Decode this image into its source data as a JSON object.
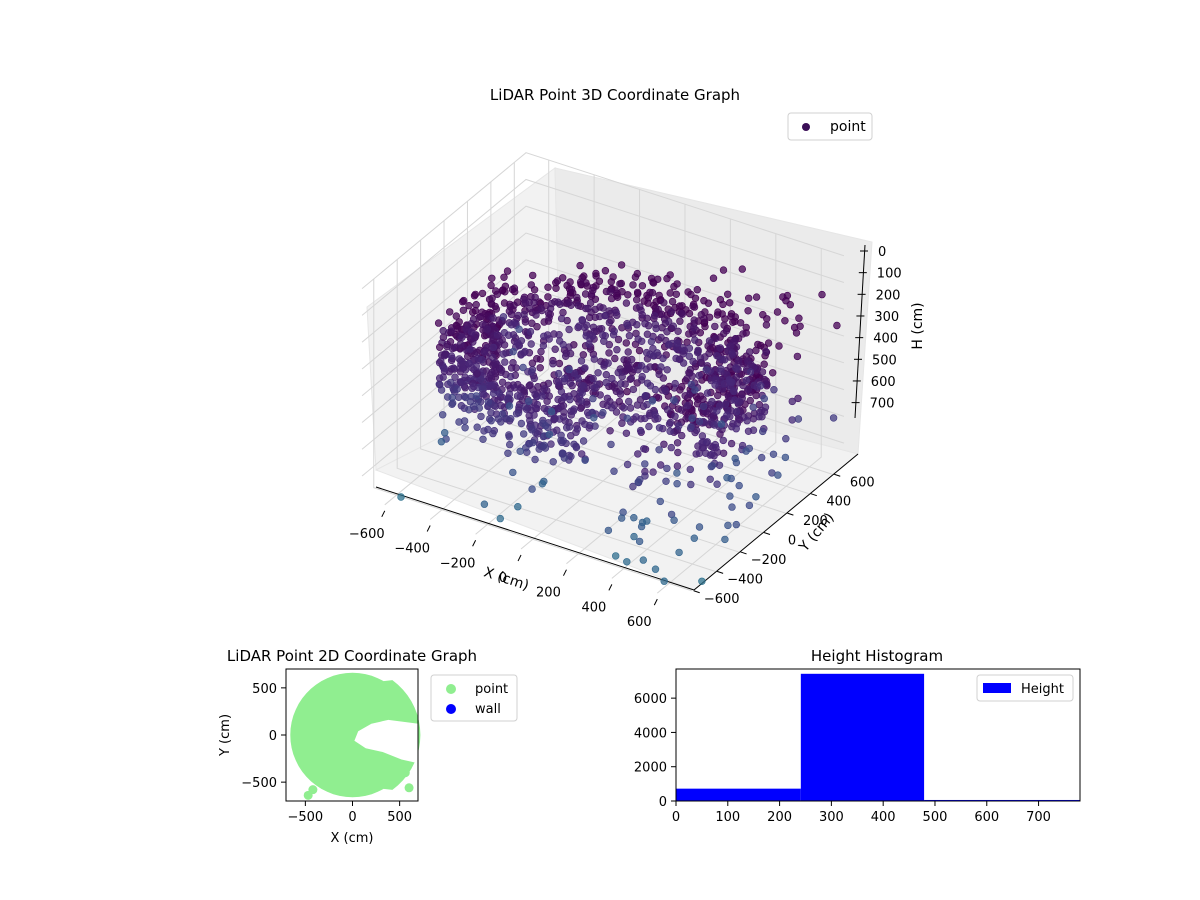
{
  "chart_data": [
    {
      "type": "scatter3d",
      "title": "LiDAR Point 3D Coordinate Graph",
      "xlabel": "X (cm)",
      "ylabel": "Y (cm)",
      "zlabel": "H (cm)",
      "xlim": [
        -700,
        700
      ],
      "ylim": [
        -700,
        700
      ],
      "zlim": [
        780,
        0
      ],
      "xticks": [
        -600,
        -400,
        -200,
        0,
        200,
        400,
        600
      ],
      "yticks": [
        -600,
        -400,
        -200,
        0,
        200,
        400,
        600
      ],
      "zticks": [
        0,
        100,
        200,
        300,
        400,
        500,
        600,
        700
      ],
      "grid": true,
      "legend": {
        "location": "upper-right",
        "entries": [
          {
            "name": "point",
            "color": "#3b0f57"
          }
        ]
      },
      "colormap": "viridis",
      "series": [
        {
          "name": "point",
          "description_points": "dense ring-shaped cloud of LiDAR returns around the origin, radius 400–650 cm, heights 250–480 cm, with sparse outliers"
        }
      ]
    },
    {
      "type": "scatter",
      "title": "LiDAR Point 2D Coordinate Graph",
      "xlabel": "X (cm)",
      "ylabel": "Y (cm)",
      "xlim": [
        -700,
        700
      ],
      "ylim": [
        -700,
        700
      ],
      "xticks": [
        -500,
        0,
        500
      ],
      "yticks": [
        -500,
        0,
        500
      ],
      "legend": {
        "location": "outside-right",
        "entries": [
          {
            "name": "point",
            "color": "#90ee90"
          },
          {
            "name": "wall",
            "color": "#0000ff"
          }
        ]
      }
    },
    {
      "type": "bar",
      "title": "Height Histogram",
      "xlabel": "",
      "ylabel": "",
      "bins": [
        {
          "x0": 0,
          "x1": 241,
          "count": 720
        },
        {
          "x0": 241,
          "x1": 479,
          "count": 7420
        },
        {
          "x0": 479,
          "x1": 780,
          "count": 60
        }
      ],
      "xlim": [
        0,
        780
      ],
      "ylim": [
        0,
        7700
      ],
      "xticks": [
        0,
        100,
        200,
        300,
        400,
        500,
        600,
        700
      ],
      "yticks": [
        0,
        2000,
        4000,
        6000
      ],
      "color": "#0000ff",
      "legend": {
        "location": "upper-right",
        "entries": [
          {
            "name": "Height",
            "color": "#0000ff"
          }
        ]
      }
    }
  ]
}
